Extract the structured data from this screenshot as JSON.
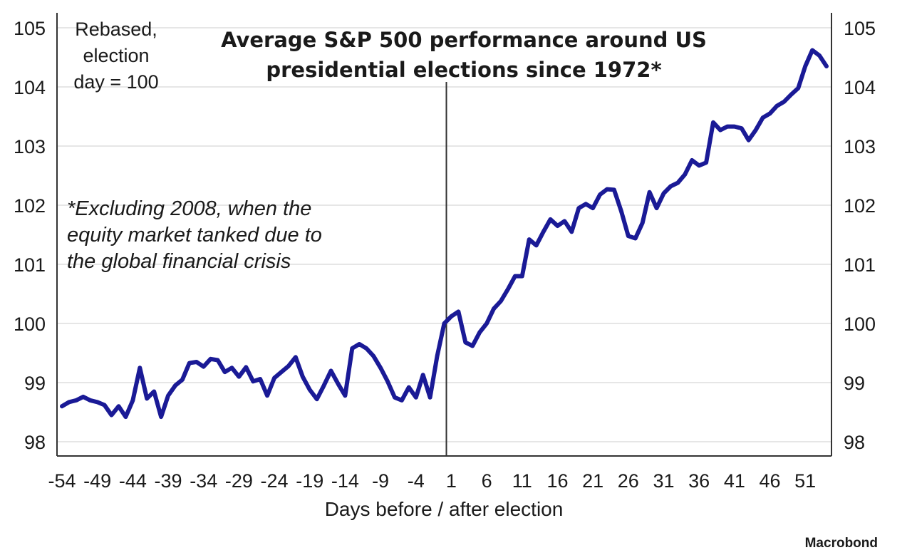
{
  "chart_data": {
    "type": "line",
    "title_lines": [
      "Average S&P 500 performance around US",
      "presidential elections since 1972*"
    ],
    "note_lines": [
      "Rebased,",
      "election",
      "day = 100"
    ],
    "footnote_lines": [
      "*Excluding 2008, when the",
      "equity market tanked due to",
      "the global financial crisis"
    ],
    "xlabel": "Days before / after election",
    "source": "Macrobond",
    "xlim": [
      -54,
      54
    ],
    "ylim": [
      97.8,
      105.2
    ],
    "x_ticks": [
      "-54",
      "-49",
      "-44",
      "-39",
      "-34",
      "-29",
      "-24",
      "-19",
      "-14",
      "-9",
      "-4",
      "1",
      "6",
      "11",
      "16",
      "21",
      "26",
      "31",
      "36",
      "41",
      "46",
      "51"
    ],
    "y_ticks": [
      "98",
      "99",
      "100",
      "101",
      "102",
      "103",
      "104",
      "105"
    ],
    "election_day_marker": 0,
    "grid": "horizontal",
    "line_color": "#1a1a96",
    "series": [
      {
        "x": [
          -54,
          -53,
          -52,
          -51,
          -50,
          -49,
          -48,
          -47,
          -46,
          -45,
          -44,
          -43,
          -42,
          -41,
          -40,
          -39,
          -38,
          -37,
          -36,
          -35,
          -34,
          -33,
          -32,
          -31,
          -30,
          -29,
          -28,
          -27,
          -26,
          -25,
          -24,
          -23,
          -22,
          -21,
          -20,
          -19,
          -18,
          -17,
          -16,
          -15,
          -14,
          -13,
          -12,
          -11,
          -10,
          -9,
          -8,
          -7,
          -6,
          -5,
          -4,
          -3,
          -2,
          -1,
          0,
          1,
          2,
          3,
          4,
          5,
          6,
          7,
          8,
          9,
          10,
          11,
          12,
          13,
          14,
          15,
          16,
          17,
          18,
          19,
          20,
          21,
          22,
          23,
          24,
          25,
          26,
          27,
          28,
          29,
          30,
          31,
          32,
          33,
          34,
          35,
          36,
          37,
          38,
          39,
          40,
          41,
          42,
          43,
          44,
          45,
          46,
          47,
          48,
          49,
          50,
          51,
          52,
          53,
          54
        ],
        "values": [
          98.6,
          98.67,
          98.7,
          98.76,
          98.7,
          98.67,
          98.62,
          98.45,
          98.6,
          98.42,
          98.7,
          99.25,
          98.73,
          98.85,
          98.42,
          98.78,
          98.95,
          99.05,
          99.33,
          99.35,
          99.27,
          99.4,
          99.38,
          99.18,
          99.25,
          99.1,
          99.26,
          99.02,
          99.06,
          98.78,
          99.08,
          99.18,
          99.28,
          99.43,
          99.1,
          98.88,
          98.72,
          98.95,
          99.2,
          98.98,
          98.78,
          99.58,
          99.65,
          99.58,
          99.45,
          99.25,
          99.02,
          98.75,
          98.7,
          98.92,
          98.75,
          99.13,
          98.75,
          99.45,
          100.0,
          100.12,
          100.2,
          99.68,
          99.62,
          99.85,
          100.0,
          100.25,
          100.38,
          100.58,
          100.8,
          100.8,
          101.42,
          101.32,
          101.55,
          101.76,
          101.65,
          101.73,
          101.55,
          101.95,
          102.02,
          101.95,
          102.18,
          102.27,
          102.26,
          101.9,
          101.48,
          101.44,
          101.7,
          102.22,
          101.95,
          102.2,
          102.32,
          102.38,
          102.52,
          102.76,
          102.67,
          102.72,
          103.4,
          103.27,
          103.33,
          103.33,
          103.3,
          103.1,
          103.27,
          103.48,
          103.55,
          103.68,
          103.75,
          103.87,
          103.98,
          104.35,
          104.62,
          104.53,
          104.35
        ]
      }
    ]
  }
}
